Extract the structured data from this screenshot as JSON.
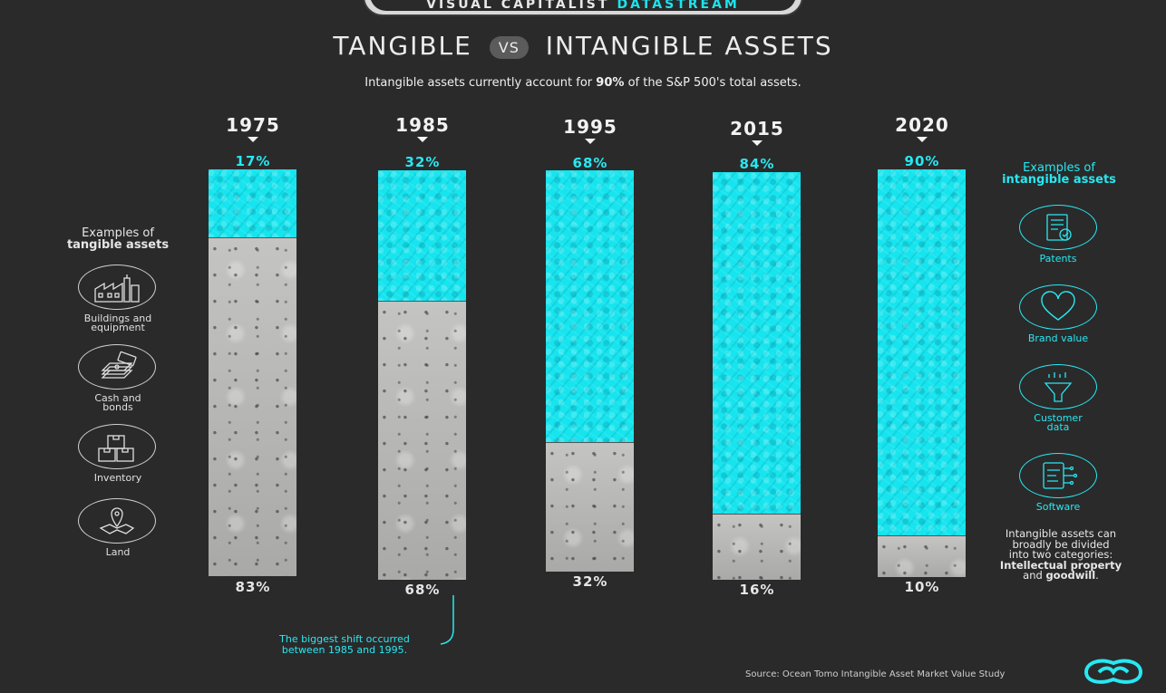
{
  "brand": {
    "part1": "VISUAL CAPITALIST",
    "part2": "DATASTREAM"
  },
  "header": {
    "title_left": "TANGIBLE",
    "title_vs": "VS",
    "title_right": "INTANGIBLE ASSETS",
    "subtitle_pre": "Intangible assets currently account for",
    "subtitle_bold": "90%",
    "subtitle_post": "of the S&P 500's total assets."
  },
  "chart_data": {
    "type": "bar",
    "stacked": true,
    "categories": [
      "1975",
      "1985",
      "1995",
      "2015",
      "2020"
    ],
    "series": [
      {
        "name": "intangible",
        "values": [
          17,
          32,
          68,
          84,
          90
        ],
        "labels": [
          "17%",
          "32%",
          "68%",
          "84%",
          "90%"
        ],
        "color": "#16e4ee"
      },
      {
        "name": "tangible",
        "values": [
          83,
          68,
          32,
          16,
          10
        ],
        "labels": [
          "83%",
          "68%",
          "32%",
          "16%",
          "10%"
        ],
        "color": "#b9b9b7"
      }
    ],
    "ylim": [
      0,
      100
    ]
  },
  "tangible": {
    "head_line1": "Examples of",
    "head_line2": "tangible assets",
    "items": [
      {
        "line1": "Buildings and",
        "line2": "equipment",
        "icon": "factory-icon"
      },
      {
        "line1": "Cash and",
        "line2": "bonds",
        "icon": "cash-icon"
      },
      {
        "line1": "Inventory",
        "line2": "",
        "icon": "boxes-icon"
      },
      {
        "line1": "Land",
        "line2": "",
        "icon": "map-pin-icon"
      }
    ]
  },
  "intangible": {
    "head_line1": "Examples of",
    "head_line2": "intangible assets",
    "items": [
      {
        "line1": "Patents",
        "line2": "",
        "icon": "certificate-icon"
      },
      {
        "line1": "Brand value",
        "line2": "",
        "icon": "heart-icon"
      },
      {
        "line1": "Customer",
        "line2": "data",
        "icon": "funnel-icon"
      },
      {
        "line1": "Software",
        "line2": "",
        "icon": "software-icon"
      }
    ]
  },
  "note": {
    "line1": "Intangible assets can",
    "line2": "broadly be divided",
    "line3": "into two categories:",
    "bold1": "Intellectual property",
    "and": "and",
    "bold2": "goodwill",
    "end": "."
  },
  "shift_note": {
    "line1": "The biggest shift occurred",
    "line2": "between 1985 and 1995."
  },
  "source": "Source: Ocean Tomo Intangible Asset Market Value Study",
  "colors": {
    "accent": "#27e8f2",
    "background": "#2a2a2a",
    "tangible": "#b9b9b7"
  }
}
